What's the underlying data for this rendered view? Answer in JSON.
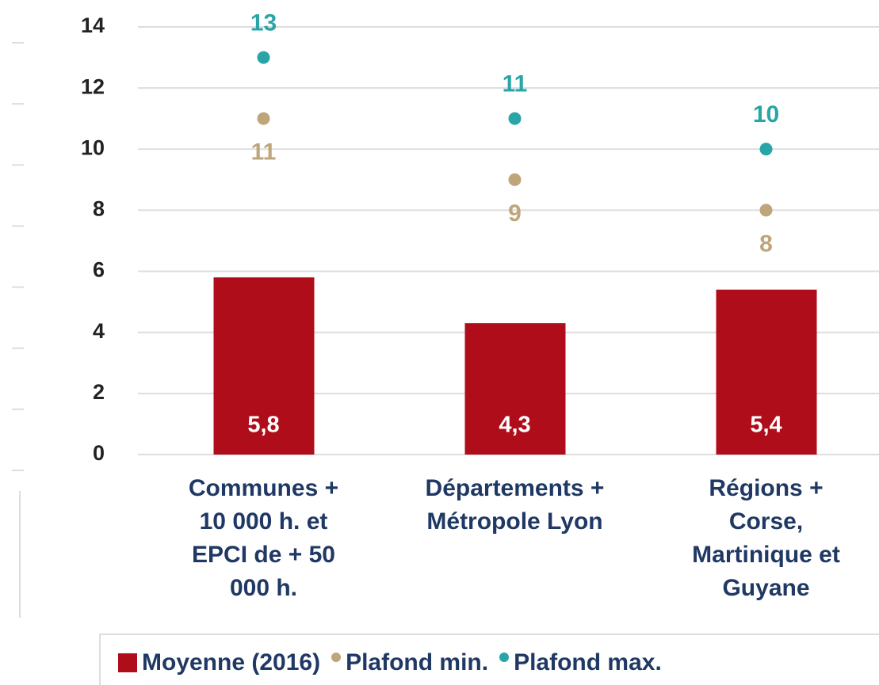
{
  "chart_data": {
    "type": "bar",
    "categories": [
      "Communes +\n10 000 h. et\nEPCI de + 50\n000 h.",
      "Départements +\nMétropole Lyon",
      "Régions +\nCorse,\nMartinique et\nGuyane"
    ],
    "series": [
      {
        "name": "Moyenne (2016)",
        "type": "bar",
        "color": "#b00d1a",
        "values": [
          5.8,
          4.3,
          5.4
        ],
        "value_labels": [
          "5,8",
          "4,3",
          "5,4"
        ]
      },
      {
        "name": "Plafond min.",
        "type": "scatter",
        "color": "#bfa67a",
        "values": [
          11,
          9,
          8
        ]
      },
      {
        "name": "Plafond max.",
        "type": "scatter",
        "color": "#2aa5a7",
        "values": [
          13,
          11,
          10
        ]
      }
    ],
    "ylim": [
      0,
      14
    ],
    "yticks": [
      0,
      2,
      4,
      6,
      8,
      10,
      12,
      14
    ],
    "grid": true
  }
}
